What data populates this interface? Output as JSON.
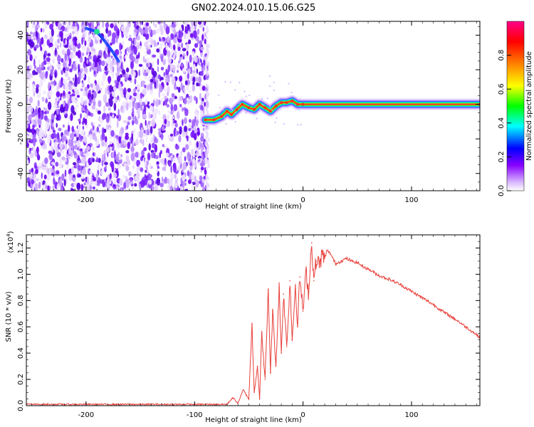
{
  "title": "GN02.2024.010.15.06.G25",
  "chart_data": [
    {
      "type": "heatmap",
      "panel": "top",
      "xlabel": "Height of straight line (km)",
      "ylabel": "Frequency (Hz)",
      "xlim": [
        -255,
        163
      ],
      "ylim": [
        -50,
        48
      ],
      "xticks": [
        -200,
        -100,
        0,
        100
      ],
      "yticks": [
        -40,
        -20,
        0,
        20,
        40
      ],
      "colorbar": {
        "label": "Normalized spectral amplitude",
        "range": [
          0,
          1
        ],
        "ticks": [
          0.0,
          0.2,
          0.4,
          0.6,
          0.8
        ],
        "colormap": [
          "#ffffff",
          "#8800ff",
          "#0000ff",
          "#00ffff",
          "#00ff00",
          "#ffff00",
          "#ff8000",
          "#ff0000",
          "#ff0088"
        ]
      },
      "noise_region_x": [
        -255,
        -88
      ],
      "trace": [
        {
          "x": -90,
          "y": -9
        },
        {
          "x": -82,
          "y": -9
        },
        {
          "x": -75,
          "y": -7
        },
        {
          "x": -70,
          "y": -4
        },
        {
          "x": -66,
          "y": -6
        },
        {
          "x": -61,
          "y": -3
        },
        {
          "x": -56,
          "y": 0
        },
        {
          "x": -50,
          "y": -2
        },
        {
          "x": -45,
          "y": -3
        },
        {
          "x": -40,
          "y": 0
        },
        {
          "x": -35,
          "y": -2
        },
        {
          "x": -30,
          "y": -4
        },
        {
          "x": -25,
          "y": -1
        },
        {
          "x": -20,
          "y": 1
        },
        {
          "x": -15,
          "y": 1
        },
        {
          "x": -10,
          "y": 2
        },
        {
          "x": -5,
          "y": 0
        },
        {
          "x": 0,
          "y": 0
        },
        {
          "x": 163,
          "y": 0
        }
      ],
      "arc": [
        {
          "x": -200,
          "y": 44
        },
        {
          "x": -190,
          "y": 42
        },
        {
          "x": -182,
          "y": 36
        },
        {
          "x": -175,
          "y": 30
        },
        {
          "x": -170,
          "y": 25
        }
      ]
    },
    {
      "type": "line",
      "panel": "bottom",
      "xlabel": "Height of straight line (km)",
      "ylabel": "SNR (10 * v/v)",
      "y_multiplier": "(x10",
      "y_multiplier_exp": "4",
      "y_multiplier_close": ")",
      "xlim": [
        -255,
        163
      ],
      "ylim": [
        0,
        1.3
      ],
      "xticks": [
        -200,
        -100,
        0,
        100
      ],
      "yticks": [
        0.0,
        0.2,
        0.4,
        0.6,
        0.8,
        1.0,
        1.2
      ],
      "series": [
        {
          "color": "#e8413c",
          "x": [
            -255,
            -200,
            -150,
            -100,
            -70,
            -65,
            -60,
            -55,
            -50,
            -47,
            -45,
            -42,
            -40,
            -38,
            -35,
            -32,
            -30,
            -28,
            -25,
            -22,
            -20,
            -18,
            -15,
            -12,
            -10,
            -7,
            -5,
            -3,
            0,
            3,
            5,
            8,
            10,
            12,
            15,
            18,
            20,
            22,
            25,
            30,
            35,
            40,
            45,
            50,
            55,
            60,
            70,
            80,
            90,
            100,
            110,
            120,
            130,
            140,
            150,
            160,
            163
          ],
          "y": [
            0.01,
            0.01,
            0.01,
            0.01,
            0.01,
            0.06,
            0.02,
            0.12,
            0.05,
            0.62,
            0.1,
            0.3,
            0.05,
            0.55,
            0.2,
            0.88,
            0.25,
            0.72,
            0.3,
            0.9,
            0.4,
            0.85,
            0.45,
            0.95,
            0.5,
            0.92,
            0.6,
            0.98,
            0.72,
            1.03,
            0.85,
            1.24,
            0.95,
            1.1,
            1.08,
            1.15,
            1.12,
            1.18,
            1.16,
            1.08,
            1.1,
            1.12,
            1.1,
            1.09,
            1.06,
            1.04,
            0.99,
            0.96,
            0.92,
            0.87,
            0.82,
            0.77,
            0.71,
            0.66,
            0.6,
            0.54,
            0.52
          ]
        }
      ]
    }
  ]
}
